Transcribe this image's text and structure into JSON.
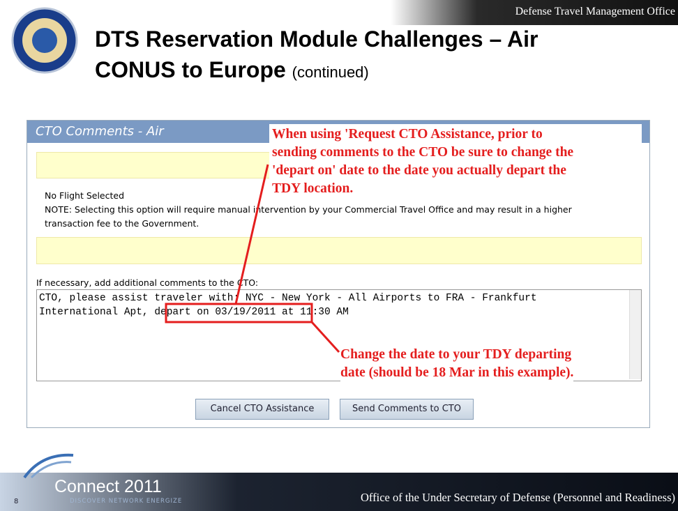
{
  "header": {
    "org": "Defense Travel Management Office",
    "title_line1": "DTS Reservation Module Challenges – Air",
    "title_line2": "CONUS to Europe",
    "title_suffix": "(continued)"
  },
  "panel": {
    "heading": "CTO Comments - Air",
    "no_flight": "No Flight Selected",
    "note_line1": "NOTE: Selecting this option will require manual intervention by your Commercial Travel Office and may result in a higher",
    "note_line2": "transaction fee to the Government.",
    "comments_label": "If necessary, add additional comments to the CTO:",
    "comment_line1": "CTO, please assist traveler with: NYC - New York - All Airports to FRA - Frankfurt",
    "comment_line2_start": "International Apt, ",
    "comment_line2_date": "depart on 03/19/2011",
    "comment_line2_end": " at 11:30 AM",
    "buttons": [
      "Cancel CTO Assistance",
      "Send Comments to CTO"
    ]
  },
  "annotations": {
    "top": [
      "When using 'Request CTO Assistance, prior to",
      "sending comments to the CTO be sure to change the",
      "'depart on' date to the date you actually depart the",
      "TDY location."
    ],
    "bottom": [
      "Change the date to your TDY departing",
      "date (should be 18 Mar in this example)."
    ]
  },
  "footer": {
    "brand": "Connect 2011",
    "tagline": "DISCOVER NETWORK ENERGIZE",
    "page": "8",
    "office": "Office of the Under Secretary of Defense (Personnel and Readiness)"
  }
}
